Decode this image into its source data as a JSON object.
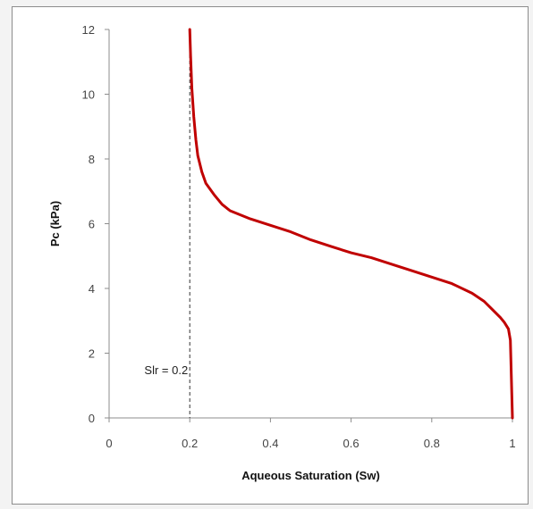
{
  "chart_data": {
    "type": "line",
    "title": "",
    "xlabel": "Aqueous Saturation (Sw)",
    "ylabel": "Pc (kPa)",
    "xlim": [
      0,
      1
    ],
    "ylim": [
      0,
      12
    ],
    "x_ticks": [
      "0",
      "0.2",
      "0.4",
      "0.6",
      "0.8",
      "1"
    ],
    "y_ticks": [
      "0",
      "2",
      "4",
      "6",
      "8",
      "10",
      "12"
    ],
    "grid": false,
    "legend": "none",
    "line_color": "#c00000",
    "series": [
      {
        "x": [
          0.2,
          0.202,
          0.205,
          0.21,
          0.215,
          0.22,
          0.23,
          0.24,
          0.26,
          0.28,
          0.3,
          0.35,
          0.4,
          0.45,
          0.5,
          0.55,
          0.6,
          0.65,
          0.7,
          0.75,
          0.8,
          0.85,
          0.9,
          0.93,
          0.95,
          0.97,
          0.98,
          0.99,
          0.995,
          1.0
        ],
        "y": [
          12.0,
          11.2,
          10.2,
          9.3,
          8.6,
          8.1,
          7.6,
          7.25,
          6.9,
          6.6,
          6.4,
          6.15,
          5.95,
          5.75,
          5.5,
          5.3,
          5.1,
          4.95,
          4.75,
          4.55,
          4.35,
          4.15,
          3.85,
          3.6,
          3.35,
          3.1,
          2.95,
          2.75,
          2.4,
          0.0
        ]
      }
    ],
    "reference_line": {
      "x": 0.2,
      "style": "dashed",
      "label": "Slr = 0.2"
    }
  }
}
